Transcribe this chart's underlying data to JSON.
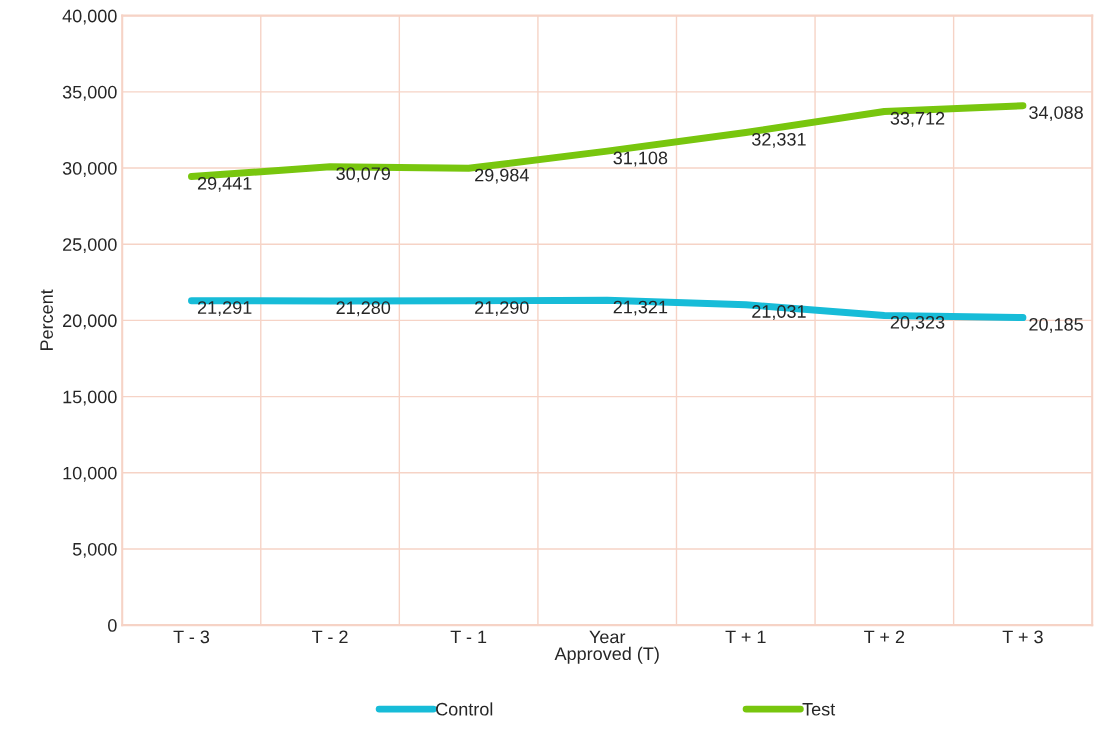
{
  "chart_data": {
    "type": "line",
    "xlabel": "Approved (T)",
    "ylabel": "Percent",
    "categories": [
      "T - 3",
      "T - 2",
      "T - 1",
      "Year",
      "T + 1",
      "T + 2",
      "T + 3"
    ],
    "series": [
      {
        "name": "Control",
        "color": "#17bcd8",
        "values": [
          21291,
          21280,
          21290,
          21321,
          21031,
          20323,
          20185
        ],
        "value_labels": [
          "21,291",
          "21,280",
          "21,290",
          "21,321",
          "21,031",
          "20,323",
          "20,185"
        ]
      },
      {
        "name": "Test",
        "color": "#78c60e",
        "values": [
          29441,
          30079,
          29984,
          31108,
          32331,
          33712,
          34088
        ],
        "value_labels": [
          "29,441",
          "30,079",
          "29,984",
          "31,108",
          "32,331",
          "33,712",
          "34,088"
        ]
      }
    ],
    "ylim": [
      0,
      40000
    ],
    "yticks": [
      {
        "value": 0,
        "label": "0"
      },
      {
        "value": 5000,
        "label": "5,000"
      },
      {
        "value": 10000,
        "label": "10,000"
      },
      {
        "value": 15000,
        "label": "15,000"
      },
      {
        "value": 20000,
        "label": "20,000"
      },
      {
        "value": 25000,
        "label": "25,000"
      },
      {
        "value": 30000,
        "label": "30,000"
      },
      {
        "value": 35000,
        "label": "35,000"
      },
      {
        "value": 40000,
        "label": "40,000"
      }
    ],
    "grid": true,
    "legend": "bottom",
    "marker": "none",
    "line_style": "solid"
  }
}
